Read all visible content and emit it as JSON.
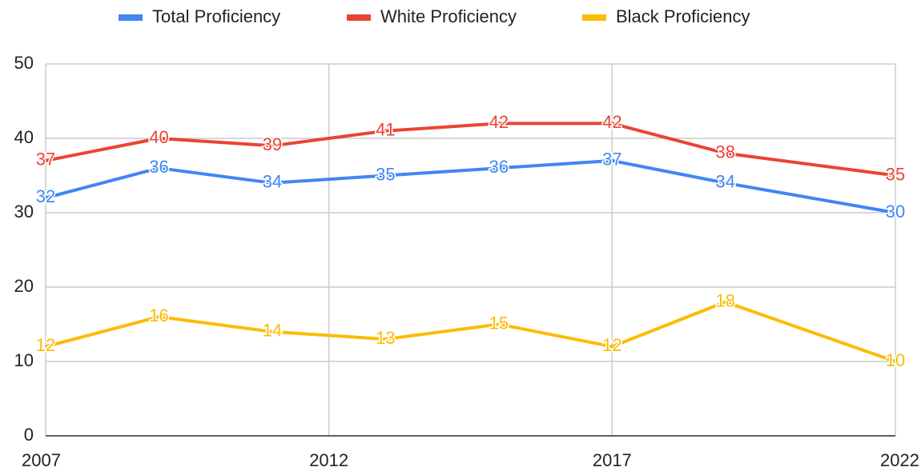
{
  "chart_data": {
    "type": "line",
    "x": [
      2007,
      2009,
      2011,
      2013,
      2015,
      2017,
      2019,
      2022
    ],
    "series": [
      {
        "name": "Total Proficiency",
        "color": "#4285f4",
        "values": [
          32,
          36,
          34,
          35,
          36,
          37,
          34,
          30
        ]
      },
      {
        "name": "White Proficiency",
        "color": "#ea4335",
        "values": [
          37,
          40,
          39,
          41,
          42,
          42,
          38,
          35
        ]
      },
      {
        "name": "Black Proficiency",
        "color": "#fbbc04",
        "values": [
          12,
          16,
          14,
          13,
          15,
          12,
          18,
          10
        ]
      }
    ],
    "xlim": [
      2007,
      2022
    ],
    "xticks": [
      2007,
      2012,
      2017,
      2022
    ],
    "ylim": [
      0,
      50
    ],
    "yticks": [
      0,
      10,
      20,
      30,
      40,
      50
    ],
    "grid": true,
    "legend": "top"
  }
}
